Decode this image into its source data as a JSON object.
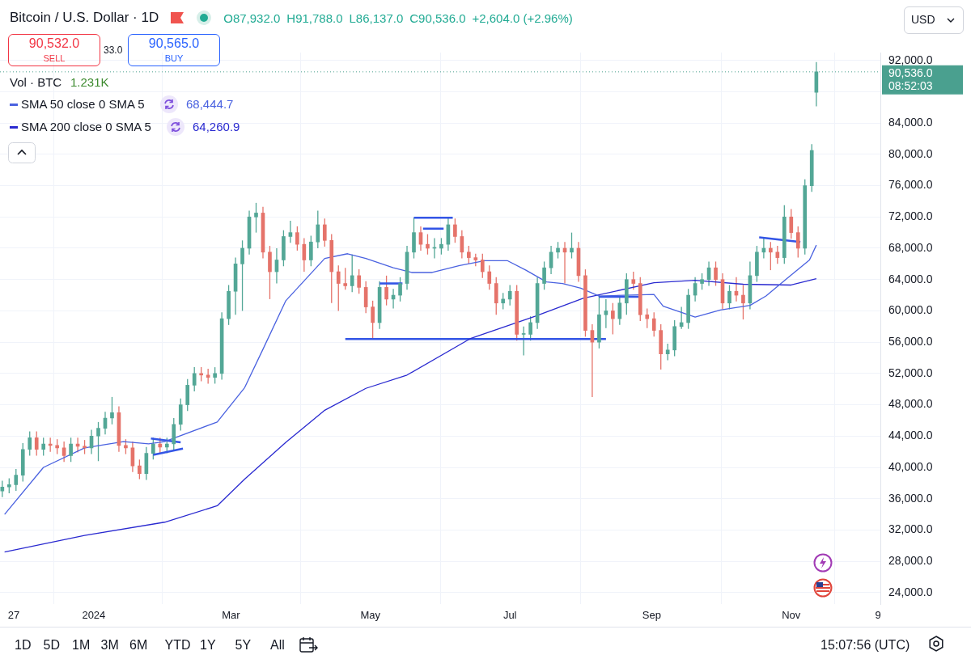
{
  "chart_data": {
    "type": "candlestick",
    "title": "Bitcoin / U.S. Dollar · 1D",
    "x": [
      "2023-11-22",
      "2023-11-25",
      "2023-11-28",
      "2023-12-01",
      "2023-12-04",
      "2023-12-07",
      "2023-12-10",
      "2023-12-13",
      "2023-12-16",
      "2023-12-19",
      "2023-12-22",
      "2023-12-25",
      "2023-12-28",
      "2023-12-31",
      "2024-01-03",
      "2024-01-06",
      "2024-01-09",
      "2024-01-12",
      "2024-01-15",
      "2024-01-18",
      "2024-01-21",
      "2024-01-24",
      "2024-01-27",
      "2024-01-30",
      "2024-02-02",
      "2024-02-05",
      "2024-02-08",
      "2024-02-11",
      "2024-02-14",
      "2024-02-17",
      "2024-02-20",
      "2024-02-23",
      "2024-02-26",
      "2024-02-29",
      "2024-03-03",
      "2024-03-06",
      "2024-03-09",
      "2024-03-12",
      "2024-03-15",
      "2024-03-18",
      "2024-03-21",
      "2024-03-24",
      "2024-03-27",
      "2024-03-30",
      "2024-04-02",
      "2024-04-05",
      "2024-04-08",
      "2024-04-11",
      "2024-04-14",
      "2024-04-17",
      "2024-04-20",
      "2024-04-23",
      "2024-04-26",
      "2024-04-29",
      "2024-05-02",
      "2024-05-05",
      "2024-05-08",
      "2024-05-11",
      "2024-05-14",
      "2024-05-17",
      "2024-05-20",
      "2024-05-23",
      "2024-05-26",
      "2024-05-29",
      "2024-06-01",
      "2024-06-04",
      "2024-06-07",
      "2024-06-10",
      "2024-06-13",
      "2024-06-16",
      "2024-06-19",
      "2024-06-22",
      "2024-06-25",
      "2024-06-28",
      "2024-07-01",
      "2024-07-04",
      "2024-07-07",
      "2024-07-10",
      "2024-07-13",
      "2024-07-16",
      "2024-07-19",
      "2024-07-22",
      "2024-07-25",
      "2024-07-28",
      "2024-07-31",
      "2024-08-03",
      "2024-08-06",
      "2024-08-09",
      "2024-08-12",
      "2024-08-15",
      "2024-08-18",
      "2024-08-21",
      "2024-08-24",
      "2024-08-27",
      "2024-08-30",
      "2024-09-02",
      "2024-09-05",
      "2024-09-08",
      "2024-09-11",
      "2024-09-14",
      "2024-09-17",
      "2024-09-20",
      "2024-09-23",
      "2024-09-26",
      "2024-09-29",
      "2024-10-02",
      "2024-10-05",
      "2024-10-08",
      "2024-10-11",
      "2024-10-14",
      "2024-10-17",
      "2024-10-20",
      "2024-10-23",
      "2024-10-26",
      "2024-10-29",
      "2024-11-01",
      "2024-11-04",
      "2024-11-07",
      "2024-11-10",
      "2024-11-12"
    ],
    "ohlc": [
      [
        37000,
        38300,
        36200,
        37500
      ],
      [
        37500,
        38600,
        36700,
        37800
      ],
      [
        37800,
        39800,
        37000,
        39000
      ],
      [
        39000,
        43100,
        38200,
        42300
      ],
      [
        42300,
        44600,
        41500,
        43800
      ],
      [
        43800,
        44600,
        41500,
        42300
      ],
      [
        42300,
        43800,
        41500,
        43000
      ],
      [
        43000,
        43800,
        42000,
        42800
      ],
      [
        42800,
        43600,
        41700,
        42500
      ],
      [
        42500,
        43300,
        40700,
        41500
      ],
      [
        41500,
        43800,
        40700,
        43000
      ],
      [
        43000,
        43800,
        41900,
        42700
      ],
      [
        42700,
        43500,
        41700,
        42500
      ],
      [
        42500,
        44800,
        41700,
        44000
      ],
      [
        44000,
        45800,
        40800,
        45000
      ],
      [
        45000,
        47100,
        44200,
        46300
      ],
      [
        46300,
        49000,
        45500,
        47000
      ],
      [
        47000,
        47800,
        42000,
        42800
      ],
      [
        42800,
        43600,
        41700,
        42500
      ],
      [
        42500,
        43300,
        39400,
        40200
      ],
      [
        40200,
        41000,
        38500,
        39200
      ],
      [
        39200,
        42600,
        38400,
        41800
      ],
      [
        41800,
        43800,
        41000,
        43000
      ],
      [
        43000,
        43800,
        41800,
        42600
      ],
      [
        42600,
        43800,
        41800,
        43000
      ],
      [
        43000,
        46300,
        42200,
        45500
      ],
      [
        45500,
        48800,
        44700,
        48000
      ],
      [
        48000,
        51300,
        47200,
        50500
      ],
      [
        50500,
        52800,
        49700,
        52000
      ],
      [
        52000,
        52800,
        51000,
        51800
      ],
      [
        51800,
        52600,
        50700,
        51500
      ],
      [
        51500,
        52800,
        50700,
        52000
      ],
      [
        52000,
        59800,
        51200,
        59000
      ],
      [
        59000,
        63300,
        58200,
        62500
      ],
      [
        62500,
        66800,
        59500,
        66000
      ],
      [
        66000,
        69000,
        60000,
        68000
      ],
      [
        68000,
        72800,
        67200,
        72000
      ],
      [
        72000,
        73800,
        70000,
        72500
      ],
      [
        72500,
        73300,
        66700,
        67500
      ],
      [
        67500,
        68300,
        61500,
        65000
      ],
      [
        65000,
        68000,
        63500,
        66500
      ],
      [
        66500,
        70300,
        65700,
        69500
      ],
      [
        69500,
        71500,
        68700,
        70000
      ],
      [
        70000,
        70800,
        67700,
        68500
      ],
      [
        68500,
        69300,
        65000,
        66500
      ],
      [
        66500,
        69600,
        65700,
        68800
      ],
      [
        68800,
        72800,
        68000,
        71000
      ],
      [
        71000,
        71800,
        68200,
        69000
      ],
      [
        69000,
        69800,
        61000,
        65000
      ],
      [
        65000,
        65800,
        60000,
        63500
      ],
      [
        63500,
        65500,
        62700,
        63200
      ],
      [
        63200,
        67200,
        62400,
        64500
      ],
      [
        64500,
        65300,
        62200,
        63000
      ],
      [
        63000,
        63800,
        59700,
        60500
      ],
      [
        60500,
        61300,
        56500,
        58500
      ],
      [
        58500,
        63800,
        57700,
        63000
      ],
      [
        63000,
        64500,
        60700,
        61500
      ],
      [
        61500,
        62800,
        60300,
        62000
      ],
      [
        62000,
        64300,
        61200,
        63500
      ],
      [
        63500,
        68300,
        62700,
        67500
      ],
      [
        67500,
        71900,
        66700,
        70000
      ],
      [
        70000,
        70800,
        67700,
        68500
      ],
      [
        68500,
        69800,
        67200,
        68000
      ],
      [
        68000,
        69300,
        66700,
        68000
      ],
      [
        68000,
        69300,
        67200,
        68500
      ],
      [
        68500,
        71900,
        67700,
        71000
      ],
      [
        71000,
        71800,
        68700,
        69500
      ],
      [
        69500,
        70300,
        66700,
        67500
      ],
      [
        67500,
        68300,
        66000,
        66800
      ],
      [
        66800,
        67300,
        65700,
        66500
      ],
      [
        66500,
        67300,
        64200,
        65000
      ],
      [
        65000,
        65800,
        62700,
        63500
      ],
      [
        63500,
        64300,
        59500,
        61000
      ],
      [
        61000,
        62300,
        60200,
        61500
      ],
      [
        61500,
        63300,
        60700,
        62500
      ],
      [
        62500,
        63300,
        56200,
        57000
      ],
      [
        57000,
        58000,
        54300,
        57000
      ],
      [
        57000,
        59300,
        56200,
        58500
      ],
      [
        58500,
        64300,
        57700,
        63500
      ],
      [
        63500,
        66300,
        62700,
        65500
      ],
      [
        65500,
        68300,
        64700,
        67500
      ],
      [
        67500,
        68800,
        66700,
        68000
      ],
      [
        68000,
        68800,
        63500,
        67500
      ],
      [
        67500,
        70000,
        66700,
        68000
      ],
      [
        68000,
        68800,
        63700,
        64500
      ],
      [
        64500,
        65300,
        56700,
        57500
      ],
      [
        57500,
        58300,
        49000,
        56000
      ],
      [
        56000,
        62000,
        55200,
        59500
      ],
      [
        59500,
        61500,
        57800,
        60000
      ],
      [
        60000,
        61000,
        57000,
        59000
      ],
      [
        59000,
        61800,
        58200,
        61000
      ],
      [
        61000,
        64800,
        59500,
        64000
      ],
      [
        64000,
        65000,
        62700,
        63500
      ],
      [
        63500,
        64300,
        58700,
        59500
      ],
      [
        59500,
        60300,
        57800,
        59000
      ],
      [
        59000,
        59800,
        56700,
        57500
      ],
      [
        57500,
        58300,
        52500,
        54500
      ],
      [
        54500,
        55800,
        53700,
        55000
      ],
      [
        55000,
        58800,
        54200,
        58000
      ],
      [
        58000,
        60500,
        57700,
        58500
      ],
      [
        58500,
        62800,
        57700,
        62000
      ],
      [
        62000,
        64300,
        61200,
        63500
      ],
      [
        63500,
        64800,
        62700,
        64000
      ],
      [
        64000,
        66300,
        63200,
        65500
      ],
      [
        65500,
        66300,
        63200,
        64000
      ],
      [
        64000,
        64800,
        60200,
        61000
      ],
      [
        61000,
        63300,
        60200,
        62500
      ],
      [
        62500,
        64300,
        61200,
        62000
      ],
      [
        62000,
        63300,
        58900,
        61000
      ],
      [
        61000,
        66300,
        60200,
        64500
      ],
      [
        64500,
        68300,
        63700,
        67500
      ],
      [
        67500,
        69300,
        66700,
        68000
      ],
      [
        68000,
        68800,
        65200,
        67500
      ],
      [
        67500,
        68300,
        66000,
        66800
      ],
      [
        66800,
        73500,
        66000,
        72000
      ],
      [
        72000,
        73000,
        69200,
        70000
      ],
      [
        70000,
        70800,
        66800,
        68000
      ],
      [
        68000,
        76800,
        67200,
        76000
      ],
      [
        76000,
        81300,
        75200,
        80500
      ],
      [
        87932,
        91788,
        86137,
        90536
      ]
    ],
    "colors": [
      "#53a796",
      "#53a796",
      "#53a796",
      "#53a796",
      "#53a796",
      "#e5736a",
      "#53a796",
      "#e5736a",
      "#e5736a",
      "#e5736a",
      "#53a796",
      "#e5736a",
      "#e5736a",
      "#53a796",
      "#53a796",
      "#53a796",
      "#53a796",
      "#e5736a",
      "#e5736a",
      "#e5736a",
      "#e5736a",
      "#53a796",
      "#53a796",
      "#e5736a",
      "#53a796",
      "#53a796",
      "#53a796",
      "#53a796",
      "#53a796",
      "#e5736a",
      "#e5736a",
      "#53a796",
      "#53a796",
      "#53a796",
      "#53a796",
      "#53a796",
      "#53a796",
      "#53a796",
      "#e5736a",
      "#e5736a",
      "#53a796",
      "#53a796",
      "#53a796",
      "#e5736a",
      "#e5736a",
      "#53a796",
      "#53a796",
      "#e5736a",
      "#e5736a",
      "#e5736a",
      "#e5736a",
      "#53a796",
      "#e5736a",
      "#e5736a",
      "#e5736a",
      "#53a796",
      "#e5736a",
      "#53a796",
      "#53a796",
      "#53a796",
      "#53a796",
      "#e5736a",
      "#e5736a",
      "#53a796",
      "#53a796",
      "#53a796",
      "#e5736a",
      "#e5736a",
      "#e5736a",
      "#e5736a",
      "#e5736a",
      "#e5736a",
      "#e5736a",
      "#53a796",
      "#53a796",
      "#e5736a",
      "#53a796",
      "#53a796",
      "#53a796",
      "#53a796",
      "#53a796",
      "#53a796",
      "#e5736a",
      "#53a796",
      "#e5736a",
      "#e5736a",
      "#e5736a",
      "#53a796",
      "#53a796",
      "#e5736a",
      "#53a796",
      "#53a796",
      "#e5736a",
      "#e5736a",
      "#e5736a",
      "#e5736a",
      "#e5736a",
      "#53a796",
      "#53a796",
      "#53a796",
      "#53a796",
      "#53a796",
      "#53a796",
      "#53a796",
      "#e5736a",
      "#e5736a",
      "#53a796",
      "#e5736a",
      "#e5736a",
      "#53a796",
      "#53a796",
      "#53a796",
      "#e5736a",
      "#e5736a",
      "#53a796",
      "#e5736a",
      "#e5736a",
      "#53a796",
      "#53a796",
      "#53a796"
    ],
    "series": [
      {
        "type": "line",
        "name": "SMA 50 close 0 SMA 5",
        "color": "#4a62e0",
        "x": [
          "2023-11-23",
          "2023-12-10",
          "2023-12-28",
          "2024-01-14",
          "2024-01-25",
          "2024-02-01",
          "2024-02-24",
          "2024-03-07",
          "2024-03-15",
          "2024-03-25",
          "2024-04-11",
          "2024-04-21",
          "2024-04-29",
          "2024-05-11",
          "2024-05-19",
          "2024-05-28",
          "2024-06-09",
          "2024-06-20",
          "2024-06-30",
          "2024-07-08",
          "2024-07-17",
          "2024-07-24",
          "2024-08-01",
          "2024-08-09",
          "2024-09-02",
          "2024-09-06",
          "2024-09-20",
          "2024-10-01",
          "2024-10-14",
          "2024-10-21",
          "2024-10-30",
          "2024-11-09",
          "2024-11-12"
        ],
        "values": [
          34000,
          40000,
          42500,
          43300,
          43000,
          43300,
          45800,
          50200,
          55100,
          61300,
          66700,
          67300,
          66700,
          65500,
          64900,
          64900,
          65800,
          66400,
          66400,
          65200,
          63700,
          63500,
          62900,
          61900,
          62100,
          60600,
          59200,
          60100,
          60700,
          61900,
          64100,
          66500,
          68400
        ]
      },
      {
        "type": "line",
        "name": "SMA 200 close 0 SMA 5",
        "color": "#2a2ad0",
        "x": [
          "2023-11-23",
          "2023-12-28",
          "2024-02-01",
          "2024-02-24",
          "2024-03-07",
          "2024-03-25",
          "2024-04-11",
          "2024-04-29",
          "2024-05-17",
          "2024-06-14",
          "2024-07-12",
          "2024-08-02",
          "2024-09-02",
          "2024-09-20",
          "2024-10-11",
          "2024-11-01",
          "2024-11-12"
        ],
        "values": [
          29200,
          31300,
          33000,
          35100,
          38500,
          43200,
          47300,
          50100,
          51800,
          56500,
          59300,
          61600,
          63600,
          63900,
          63400,
          63300,
          64100
        ]
      },
      {
        "type": "line",
        "color": "#3355e6",
        "x": [
          "2024-01-26",
          "2024-02-08"
        ],
        "values": [
          43700,
          43200
        ]
      },
      {
        "type": "line",
        "color": "#3355e6",
        "x": [
          "2024-01-27",
          "2024-02-09"
        ],
        "values": [
          41600,
          42400
        ]
      },
      {
        "type": "line",
        "color": "#3355e6",
        "x": [
          "2024-04-20",
          "2024-08-12"
        ],
        "values": [
          56400,
          56400
        ]
      },
      {
        "type": "line",
        "color": "#3355e6",
        "x": [
          "2024-05-05",
          "2024-05-15"
        ],
        "values": [
          63500,
          63500
        ]
      },
      {
        "type": "line",
        "color": "#3355e6",
        "x": [
          "2024-05-20",
          "2024-06-06"
        ],
        "values": [
          71900,
          71900
        ]
      },
      {
        "type": "line",
        "color": "#3355e6",
        "x": [
          "2024-05-24",
          "2024-06-02"
        ],
        "values": [
          70500,
          70500
        ]
      },
      {
        "type": "line",
        "color": "#3355e6",
        "x": [
          "2024-08-09",
          "2024-08-27"
        ],
        "values": [
          61800,
          61800
        ]
      },
      {
        "type": "line",
        "color": "#3355e6",
        "x": [
          "2024-10-18",
          "2024-11-05"
        ],
        "values": [
          69400,
          68800
        ]
      }
    ],
    "marker": "none",
    "xlim": [
      "2023-11-21",
      "2024-12-10"
    ],
    "xticks": [
      {
        "value": "2023-11-27",
        "label": "27"
      },
      {
        "value": "2024-01-01",
        "label": "2024"
      },
      {
        "value": "2024-03-01",
        "label": "Mar"
      },
      {
        "value": "2024-05-01",
        "label": "May"
      },
      {
        "value": "2024-07-01",
        "label": "Jul"
      },
      {
        "value": "2024-09-01",
        "label": "Sep"
      },
      {
        "value": "2024-11-01",
        "label": "Nov"
      },
      {
        "value": "2024-12-09",
        "label": "9"
      }
    ],
    "ylim": [
      22500,
      93000
    ],
    "yticks": [
      {
        "value": 24000,
        "label": "24,000.0"
      },
      {
        "value": 28000,
        "label": "28,000.0"
      },
      {
        "value": 32000,
        "label": "32,000.0"
      },
      {
        "value": 36000,
        "label": "36,000.0"
      },
      {
        "value": 40000,
        "label": "40,000.0"
      },
      {
        "value": 44000,
        "label": "44,000.0"
      },
      {
        "value": 48000,
        "label": "48,000.0"
      },
      {
        "value": 52000,
        "label": "52,000.0"
      },
      {
        "value": 56000,
        "label": "56,000.0"
      },
      {
        "value": 60000,
        "label": "60,000.0"
      },
      {
        "value": 64000,
        "label": "64,000.0"
      },
      {
        "value": 68000,
        "label": "68,000.0"
      },
      {
        "value": 72000,
        "label": "72,000.0"
      },
      {
        "value": 76000,
        "label": "76,000.0"
      },
      {
        "value": 80000,
        "label": "80,000.0"
      },
      {
        "value": 84000,
        "label": "84,000.0"
      },
      {
        "value": 88000,
        "label": null
      },
      {
        "value": 92000,
        "label": "92,000.0"
      }
    ],
    "ref_lines": [
      {
        "axis": "y",
        "value": 90536,
        "label": "90,536.0\n08:52:03",
        "color": "#4aa08f",
        "line_style": "dotted"
      }
    ],
    "grid": true,
    "legend": "top left",
    "annotations": [
      "O87,932.0",
      "H91,788.0",
      "L86,137.0",
      "C90,536.0",
      "+2,604.0 (+2.96%)",
      "90,532.0",
      "SELL",
      "33.0",
      "90,565.0",
      "BUY",
      "Vol · BTC",
      "1.231K",
      "68,444.7",
      "64,260.9",
      "USD",
      "1D",
      "5D",
      "1M",
      "3M",
      "6M",
      "YTD",
      "1Y",
      "5Y",
      "All",
      "15:07:56 (UTC)"
    ]
  }
}
